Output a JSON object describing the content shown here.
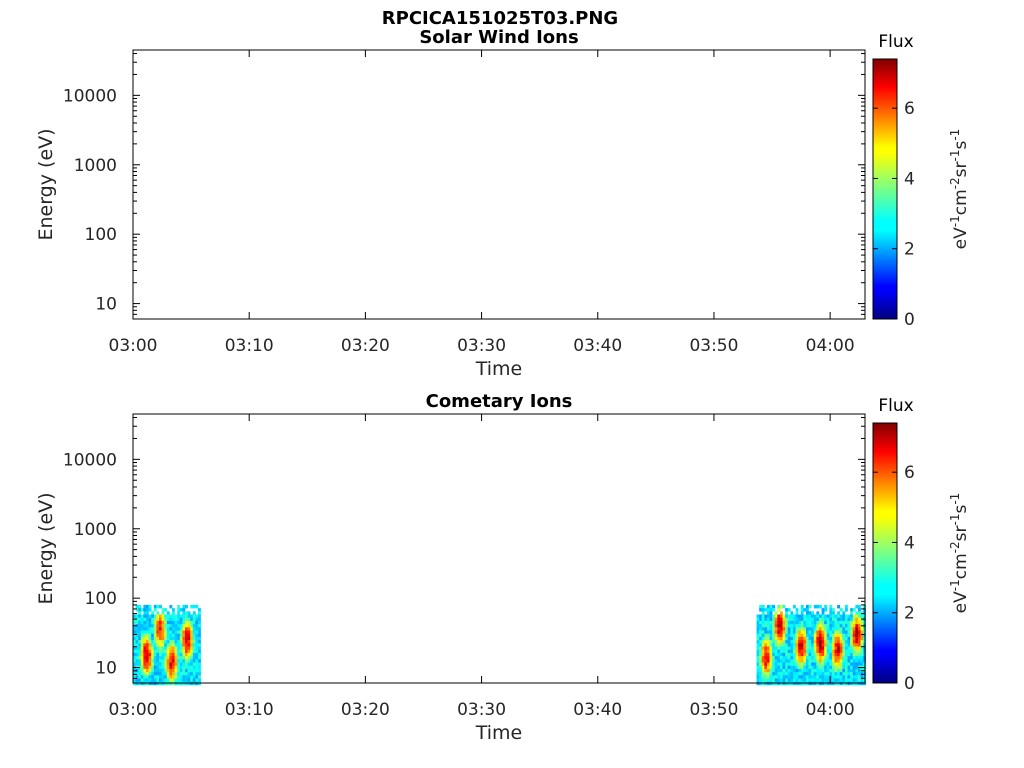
{
  "figure": {
    "title": "RPCICA151025T03.PNG"
  },
  "chart_data": [
    {
      "type": "heatmap",
      "title": "Solar Wind Ions",
      "xlabel": "Time",
      "ylabel": "Energy (eV)",
      "x_ticks": [
        "03:00",
        "03:10",
        "03:20",
        "03:30",
        "03:40",
        "03:50",
        "04:00"
      ],
      "xlim": [
        "03:00",
        "04:03"
      ],
      "y_scale": "log",
      "y_ticks": [
        10,
        100,
        1000,
        10000
      ],
      "y_tick_labels": [
        "10",
        "100",
        "1000",
        "10000"
      ],
      "ylim": [
        6,
        45000
      ],
      "grid": false,
      "colorbar": {
        "title": "Flux",
        "label": "eV-1cm-2sr-1s-1",
        "label_parts": [
          [
            "eV",
            "-1"
          ],
          [
            "cm",
            "-2"
          ],
          [
            "sr",
            "-1"
          ],
          [
            "s",
            "-1"
          ]
        ],
        "range": [
          0,
          7.4
        ],
        "ticks": [
          0,
          2,
          4,
          6
        ],
        "tick_labels": [
          "0",
          "2",
          "4",
          "6"
        ],
        "colormap": "jet"
      },
      "flux_segments": []
    },
    {
      "type": "heatmap",
      "title": "Cometary Ions",
      "xlabel": "Time",
      "ylabel": "Energy (eV)",
      "x_ticks": [
        "03:00",
        "03:10",
        "03:20",
        "03:30",
        "03:40",
        "03:50",
        "04:00"
      ],
      "xlim": [
        "03:00",
        "04:03"
      ],
      "y_scale": "log",
      "y_ticks": [
        10,
        100,
        1000,
        10000
      ],
      "y_tick_labels": [
        "10",
        "100",
        "1000",
        "10000"
      ],
      "ylim": [
        6,
        45000
      ],
      "grid": false,
      "colorbar": {
        "title": "Flux",
        "label": "eV-1cm-2sr-1s-1",
        "label_parts": [
          [
            "eV",
            "-1"
          ],
          [
            "cm",
            "-2"
          ],
          [
            "sr",
            "-1"
          ],
          [
            "s",
            "-1"
          ]
        ],
        "range": [
          0,
          7.4
        ],
        "ticks": [
          0,
          2,
          4,
          6
        ],
        "tick_labels": [
          "0",
          "2",
          "4",
          "6"
        ],
        "colormap": "jet"
      },
      "flux_segments": [
        {
          "time_start": "03:00",
          "time_end": "03:05:40",
          "energy_min": 6,
          "energy_max": 80,
          "peaks": [
            {
              "time": "03:01:10",
              "energy": 15,
              "flux": 7.0
            },
            {
              "time": "03:02:20",
              "energy": 35,
              "flux": 6.3
            },
            {
              "time": "03:03:20",
              "energy": 12,
              "flux": 6.6
            },
            {
              "time": "03:04:40",
              "energy": 25,
              "flux": 6.8
            }
          ]
        },
        {
          "time_start": "03:53:40",
          "time_end": "04:03",
          "energy_min": 6,
          "energy_max": 80,
          "peaks": [
            {
              "time": "03:54:30",
              "energy": 14,
              "flux": 6.6
            },
            {
              "time": "03:55:40",
              "energy": 40,
              "flux": 6.9
            },
            {
              "time": "03:57:30",
              "energy": 20,
              "flux": 6.7
            },
            {
              "time": "03:59:10",
              "energy": 22,
              "flux": 7.2
            },
            {
              "time": "04:00:40",
              "energy": 18,
              "flux": 6.8
            },
            {
              "time": "04:02:20",
              "energy": 30,
              "flux": 7.0
            }
          ]
        }
      ]
    }
  ]
}
